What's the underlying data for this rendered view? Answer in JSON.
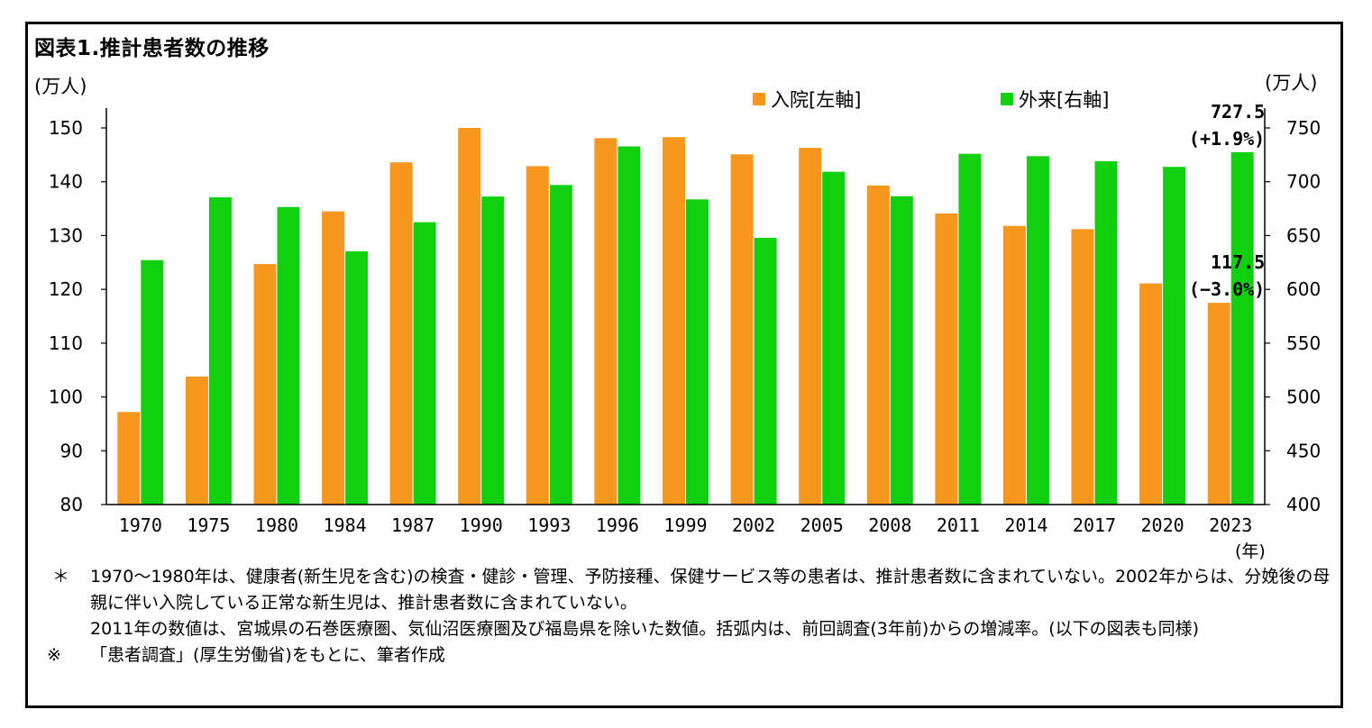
{
  "figure": {
    "title": "図表1.推計患者数の推移",
    "unit_left": "(万人)",
    "unit_right": "(万人)",
    "unit_x": "(年)"
  },
  "legend": [
    {
      "label": "入院[左軸]",
      "color": "#F7971D"
    },
    {
      "label": "外来[右軸]",
      "color": "#10D010"
    }
  ],
  "chart_data": {
    "type": "bar",
    "categories": [
      "1970",
      "1975",
      "1980",
      "1984",
      "1987",
      "1990",
      "1993",
      "1996",
      "1999",
      "2002",
      "2005",
      "2008",
      "2011",
      "2014",
      "2017",
      "2020",
      "2023"
    ],
    "series": [
      {
        "name": "入院[左軸]",
        "axis": "left",
        "color": "#F7971D",
        "values": [
          97.2,
          103.8,
          124.7,
          134.5,
          143.6,
          150.1,
          142.9,
          148.1,
          148.3,
          145.1,
          146.3,
          139.3,
          134.1,
          131.8,
          131.2,
          121.1,
          117.5
        ]
      },
      {
        "name": "外来[右軸]",
        "axis": "right",
        "color": "#10D010",
        "values": [
          627.2,
          685.5,
          676.5,
          635.4,
          662.4,
          686.3,
          697.0,
          732.8,
          683.6,
          647.9,
          709.3,
          686.5,
          726.0,
          723.8,
          719.1,
          713.8,
          727.5
        ]
      }
    ],
    "y_left": {
      "min": 80,
      "max": 150,
      "ticks": [
        80,
        90,
        100,
        110,
        120,
        130,
        140,
        150
      ]
    },
    "y_right": {
      "min": 400,
      "max": 750,
      "ticks": [
        400,
        450,
        500,
        550,
        600,
        650,
        700,
        750
      ]
    },
    "annotations": [
      {
        "series": "外来[右軸]",
        "category": "2023",
        "lines": [
          "727.5",
          "(+1.9%)"
        ]
      },
      {
        "series": "入院[左軸]",
        "category": "2023",
        "lines": [
          "117.5",
          "(−3.0%)"
        ]
      }
    ],
    "grid": false,
    "legend_position": "top-right"
  },
  "notes": [
    {
      "mark": "＊",
      "lines": [
        "1970〜1980年は、健康者(新生児を含む)の検査・健診・管理、予防接種、保健サービス等の患者は、推計患者数に含まれていない。2002年からは、分娩後の母親に伴い入院している正常な新生児は、推計患者数に含まれていない。",
        "2011年の数値は、宮城県の石巻医療圏、気仙沼医療圏及び福島県を除いた数値。括弧内は、前回調査(3年前)からの増減率。(以下の図表も同様)"
      ]
    },
    {
      "mark": "※",
      "lines": [
        "「患者調査」(厚生労働省)をもとに、筆者作成"
      ]
    }
  ]
}
